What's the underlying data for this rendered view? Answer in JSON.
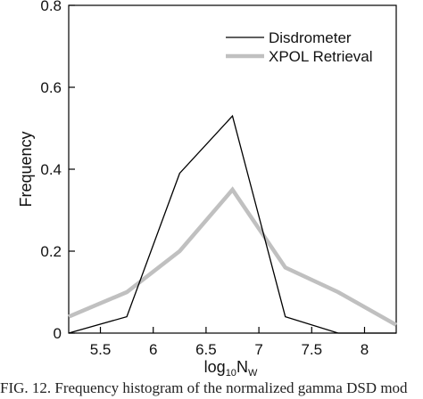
{
  "chart_data": {
    "type": "line",
    "xlabel_base": "log",
    "xlabel_sub": "10",
    "xlabel_main": "N",
    "xlabel_main_sub": "W",
    "ylabel": "Frequency",
    "xlim": [
      5.2,
      8.3
    ],
    "ylim": [
      0,
      0.8
    ],
    "xticks": [
      5.5,
      6,
      6.5,
      7,
      7.5,
      8
    ],
    "xtick_labels": [
      "5.5",
      "6",
      "6.5",
      "7",
      "7.5",
      "8"
    ],
    "yticks": [
      0,
      0.2,
      0.4,
      0.6,
      0.8
    ],
    "ytick_labels": [
      "0",
      "0.2",
      "0.4",
      "0.6",
      "0.8"
    ],
    "legend_position": "top-right",
    "grid": false,
    "series": [
      {
        "name": "Disdrometer",
        "color": "#000000",
        "x": [
          5.2,
          5.75,
          6.25,
          6.75,
          7.25,
          7.75,
          8.3
        ],
        "values": [
          0,
          0.04,
          0.39,
          0.53,
          0.04,
          0,
          0
        ]
      },
      {
        "name": "XPOL Retrieval",
        "color": "#c0c0c0",
        "x": [
          5.2,
          5.75,
          6.25,
          6.75,
          7.25,
          7.75,
          8.3
        ],
        "values": [
          0.04,
          0.1,
          0.2,
          0.35,
          0.16,
          0.1,
          0.02
        ]
      }
    ]
  },
  "caption": "FIG. 12. Frequency histogram of the normalized gamma DSD mod"
}
